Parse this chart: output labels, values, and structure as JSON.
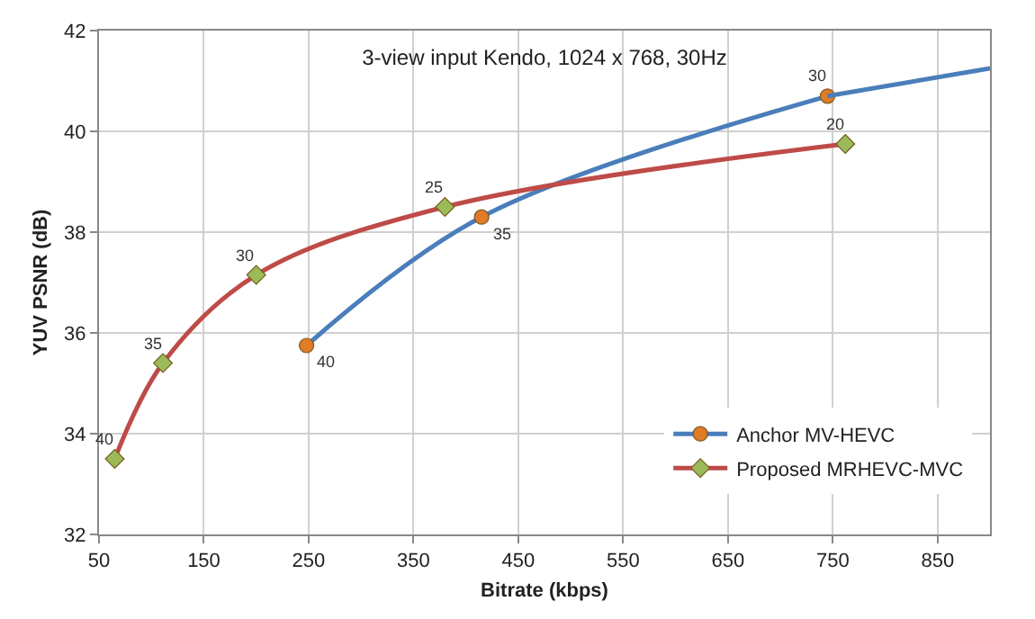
{
  "chart_data": {
    "type": "line",
    "title": "3-view input Kendo, 1024 x 768, 30Hz",
    "xlabel": "Bitrate (kbps)",
    "ylabel": "YUV PSNR (dB)",
    "xlim": [
      50,
      900
    ],
    "xticks": [
      50,
      150,
      250,
      350,
      450,
      550,
      650,
      750,
      850
    ],
    "ylim": [
      32,
      42
    ],
    "yticks": [
      32,
      34,
      36,
      38,
      40,
      42
    ],
    "grid": true,
    "legend": "bottom right",
    "line_style": "solid",
    "series": [
      {
        "name": "Anchor MV-HEVC",
        "color": "#4a7ebb",
        "marker": "circle",
        "colors": [
          "#e07b28",
          "#e07b28",
          "#e07b28"
        ],
        "x": [
          248,
          415,
          745
        ],
        "values": [
          35.75,
          38.3,
          40.7
        ]
      },
      {
        "color": "#4a7ebb",
        "marker": "none",
        "x": [
          745,
          900
        ],
        "values": [
          40.7,
          41.25
        ]
      },
      {
        "name": "Proposed MRHEVC-MVC",
        "color": "#be4b48",
        "marker": "diamond",
        "colors": [
          "#9bbb59",
          "#9bbb59",
          "#9bbb59",
          "#9bbb59",
          "#9bbb59"
        ],
        "x": [
          65,
          111,
          200,
          380,
          762
        ],
        "values": [
          33.5,
          35.4,
          37.15,
          38.5,
          39.75
        ]
      }
    ],
    "annotations": [
      {
        "text": "40",
        "x": 248,
        "y": 35.75
      },
      {
        "text": "35",
        "x": 415,
        "y": 38.3
      },
      {
        "text": "30",
        "x": 745,
        "y": 40.7
      },
      {
        "text": "40",
        "x": 65,
        "y": 33.5
      },
      {
        "text": "35",
        "x": 111,
        "y": 35.4
      },
      {
        "text": "30",
        "x": 200,
        "y": 37.15
      },
      {
        "text": "25",
        "x": 380,
        "y": 38.5
      },
      {
        "text": "20",
        "x": 762,
        "y": 39.75
      }
    ]
  }
}
